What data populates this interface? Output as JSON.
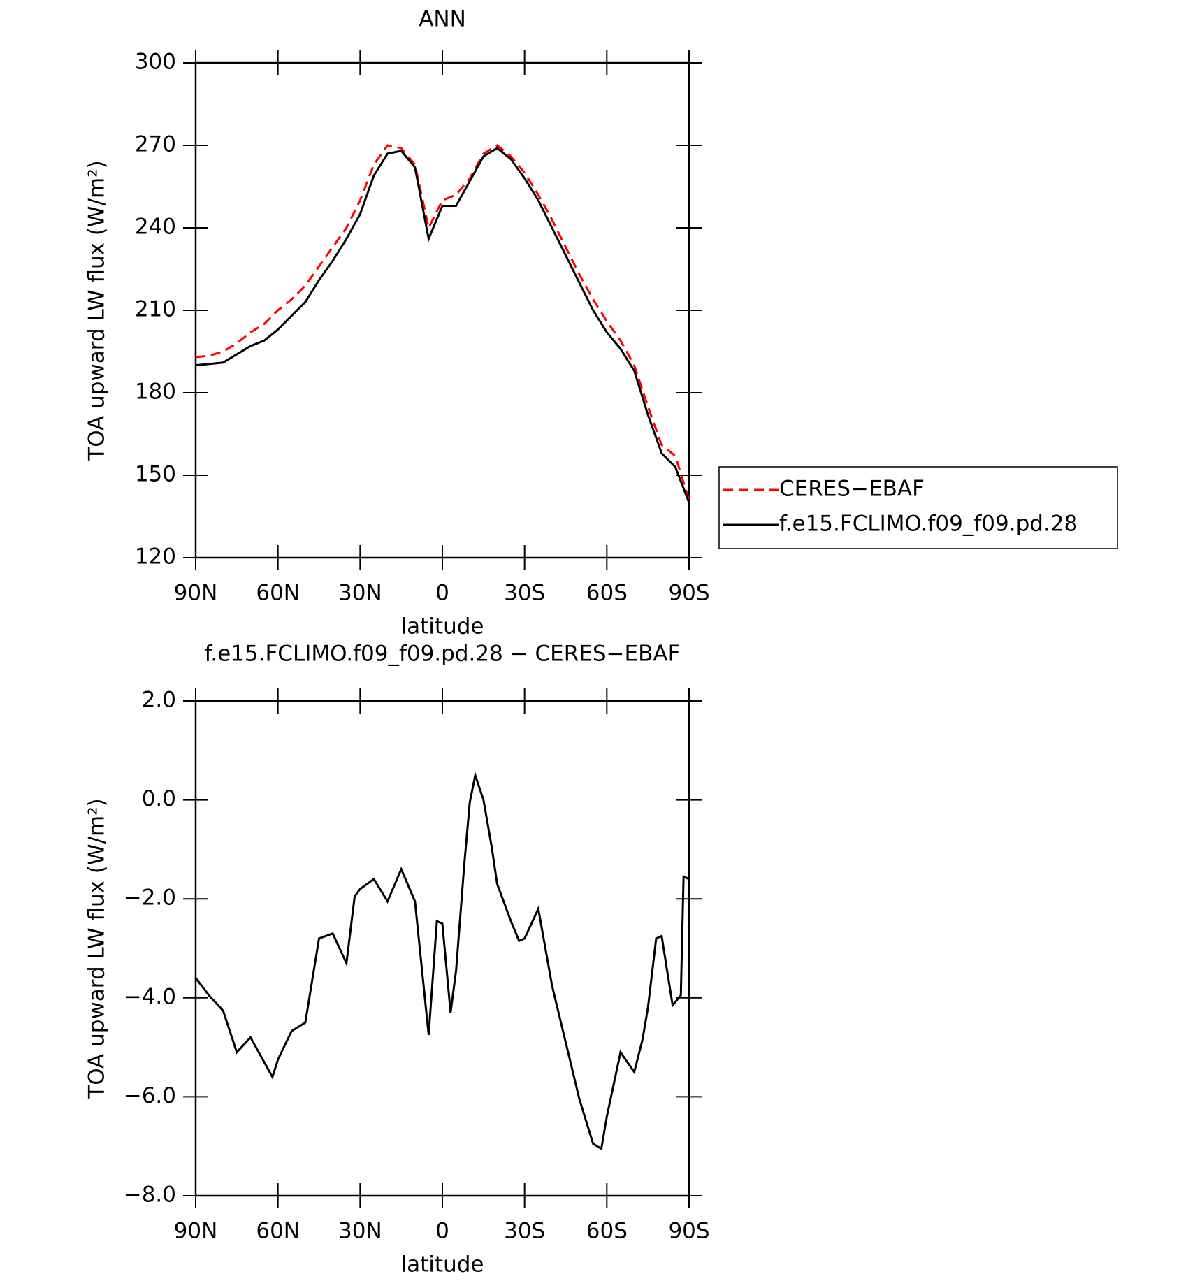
{
  "chart_data": [
    {
      "type": "line",
      "title": "ANN",
      "xlabel": "latitude",
      "ylabel": "TOA upward LW flux (W/m²)",
      "x": [
        90,
        85,
        80,
        75,
        70,
        65,
        60,
        55,
        50,
        45,
        40,
        35,
        30,
        25,
        20,
        15,
        10,
        5,
        0,
        -5,
        -10,
        -15,
        -20,
        -25,
        -30,
        -35,
        -40,
        -45,
        -50,
        -55,
        -60,
        -65,
        -70,
        -75,
        -80,
        -85,
        -90
      ],
      "series": [
        {
          "name": "CERES−EBAF",
          "color": "#ff0000",
          "line_style": "dashed",
          "values": [
            193,
            193.5,
            195,
            198,
            202,
            205,
            210,
            214,
            219,
            226,
            233,
            240,
            250,
            263,
            270,
            269,
            263,
            240,
            250,
            252,
            258,
            267,
            270,
            266,
            260,
            252,
            243,
            233,
            223,
            214,
            206,
            199,
            190,
            175,
            161,
            157,
            141
          ]
        },
        {
          "name": "f.e15.FCLIMO.f09_f09.pd.28",
          "color": "#000000",
          "line_style": "solid",
          "values": [
            190,
            190.5,
            191,
            194,
            197,
            199,
            203,
            208,
            213,
            221,
            228,
            236,
            245,
            259,
            267,
            268,
            262,
            236,
            248,
            248,
            257,
            266,
            269,
            265,
            258,
            250,
            240,
            230,
            220,
            210,
            202,
            196,
            188,
            172,
            158,
            153,
            140
          ]
        }
      ],
      "xlim": [
        90,
        -90
      ],
      "xticks": [
        {
          "value": 90,
          "label": "90N"
        },
        {
          "value": 60,
          "label": "60N"
        },
        {
          "value": 30,
          "label": "30N"
        },
        0,
        {
          "value": -30,
          "label": "30S"
        },
        {
          "value": -60,
          "label": "60S"
        },
        {
          "value": -90,
          "label": "90S"
        }
      ],
      "ylim": [
        120,
        300
      ],
      "yticks": [
        120,
        150,
        180,
        210,
        240,
        270,
        300
      ],
      "legend": "outside-right"
    },
    {
      "type": "line",
      "title": "f.e15.FCLIMO.f09_f09.pd.28 − CERES−EBAF",
      "xlabel": "latitude",
      "ylabel": "TOA upward LW flux (W/m²)",
      "x": [
        90,
        85,
        80,
        75,
        70,
        65,
        62,
        60,
        55,
        50,
        45,
        40,
        35,
        32,
        30,
        25,
        20,
        15,
        10,
        5,
        2,
        0,
        -3,
        -5,
        -8,
        -10,
        -12,
        -15,
        -18,
        -20,
        -25,
        -28,
        -30,
        -35,
        -40,
        -45,
        -50,
        -55,
        -58,
        -60,
        -65,
        -70,
        -73,
        -75,
        -78,
        -80,
        -84,
        -87,
        -88,
        -90
      ],
      "color": "#000000",
      "values": [
        -3.6,
        -3.96,
        -4.26,
        -5.1,
        -4.8,
        -5.3,
        -5.6,
        -5.25,
        -4.67,
        -4.5,
        -2.8,
        -2.7,
        -3.3,
        -1.95,
        -1.8,
        -1.6,
        -2.05,
        -1.4,
        -2.05,
        -4.75,
        -2.45,
        -2.5,
        -4.3,
        -3.45,
        -1.3,
        -0.05,
        0.5,
        0.0,
        -0.95,
        -1.7,
        -2.45,
        -2.85,
        -2.8,
        -2.2,
        -3.75,
        -4.9,
        -6.05,
        -6.95,
        -7.05,
        -6.4,
        -5.1,
        -5.5,
        -4.85,
        -4.2,
        -2.8,
        -2.75,
        -4.15,
        -3.95,
        -1.55,
        -1.6
      ],
      "xlim": [
        90,
        -90
      ],
      "xticks": [
        {
          "value": 90,
          "label": "90N"
        },
        {
          "value": 60,
          "label": "60N"
        },
        {
          "value": 30,
          "label": "30N"
        },
        0,
        {
          "value": -30,
          "label": "30S"
        },
        {
          "value": -60,
          "label": "60S"
        },
        {
          "value": -90,
          "label": "90S"
        }
      ],
      "ylim": [
        -8,
        2
      ],
      "yticks": [
        {
          "value": -8,
          "label": "−8.0"
        },
        {
          "value": -6,
          "label": "−6.0"
        },
        {
          "value": -4,
          "label": "−4.0"
        },
        {
          "value": -2,
          "label": "−2.0"
        },
        {
          "value": 0,
          "label": "0.0"
        },
        {
          "value": 2,
          "label": "2.0"
        }
      ]
    }
  ]
}
